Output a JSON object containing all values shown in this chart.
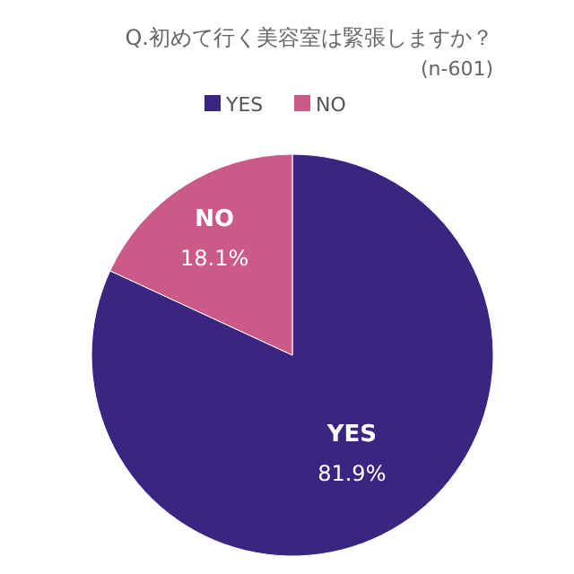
{
  "chart_data": {
    "type": "pie",
    "title": "Q.初めて行く美容室は緊張しますか？",
    "subtitle": "(n-601)",
    "categories": [
      "YES",
      "NO"
    ],
    "values": [
      81.9,
      18.1
    ],
    "colors": [
      "#3a2680",
      "#cc5a88"
    ],
    "value_labels": [
      "81.9%",
      "18.1%"
    ],
    "legend": "top"
  }
}
